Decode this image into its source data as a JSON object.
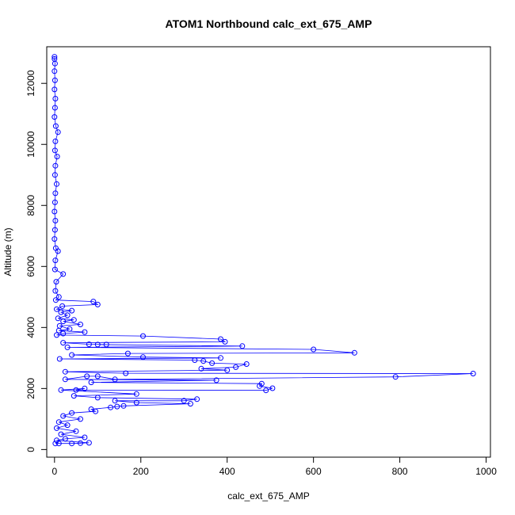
{
  "chart_data": {
    "type": "scatter",
    "title": "ATOM1 Northbound calc_ext_675_AMP",
    "xlabel": "calc_ext_675_AMP",
    "ylabel": "Altitude (m)",
    "xlim": [
      -18,
      1010
    ],
    "ylim": [
      -250,
      13200
    ],
    "xticks": [
      0,
      200,
      400,
      600,
      800,
      1000
    ],
    "yticks": [
      0,
      2000,
      4000,
      6000,
      8000,
      10000,
      12000
    ],
    "grid": false,
    "legend": "none",
    "marker": "open-circle",
    "connected": true,
    "color": "#0000ff",
    "series": [
      {
        "points": [
          [
            0,
            12870
          ],
          [
            0,
            12800
          ],
          [
            1,
            12650
          ],
          [
            0,
            12400
          ],
          [
            1,
            12100
          ],
          [
            0,
            11800
          ],
          [
            2,
            11500
          ],
          [
            1,
            11200
          ],
          [
            0,
            10900
          ],
          [
            3,
            10600
          ],
          [
            8,
            10400
          ],
          [
            2,
            10100
          ],
          [
            1,
            9800
          ],
          [
            6,
            9600
          ],
          [
            2,
            9300
          ],
          [
            1,
            9000
          ],
          [
            5,
            8700
          ],
          [
            2,
            8400
          ],
          [
            1,
            8100
          ],
          [
            0,
            7800
          ],
          [
            2,
            7500
          ],
          [
            1,
            7200
          ],
          [
            0,
            6900
          ],
          [
            3,
            6600
          ],
          [
            8,
            6500
          ],
          [
            2,
            6200
          ],
          [
            1,
            5900
          ],
          [
            20,
            5750
          ],
          [
            4,
            5500
          ],
          [
            2,
            5200
          ],
          [
            10,
            5000
          ],
          [
            3,
            4900
          ],
          [
            90,
            4850
          ],
          [
            100,
            4750
          ],
          [
            18,
            4700
          ],
          [
            5,
            4600
          ],
          [
            40,
            4550
          ],
          [
            15,
            4500
          ],
          [
            30,
            4400
          ],
          [
            8,
            4300
          ],
          [
            45,
            4250
          ],
          [
            20,
            4200
          ],
          [
            60,
            4100
          ],
          [
            12,
            4050
          ],
          [
            35,
            3950
          ],
          [
            10,
            3900
          ],
          [
            70,
            3850
          ],
          [
            20,
            3800
          ],
          [
            5,
            3750
          ],
          [
            205,
            3720
          ],
          [
            385,
            3620
          ],
          [
            395,
            3530
          ],
          [
            20,
            3500
          ],
          [
            80,
            3450
          ],
          [
            120,
            3440
          ],
          [
            100,
            3440
          ],
          [
            435,
            3390
          ],
          [
            30,
            3350
          ],
          [
            600,
            3280
          ],
          [
            695,
            3170
          ],
          [
            170,
            3150
          ],
          [
            40,
            3100
          ],
          [
            205,
            3030
          ],
          [
            385,
            3000
          ],
          [
            12,
            2970
          ],
          [
            325,
            2930
          ],
          [
            345,
            2900
          ],
          [
            365,
            2830
          ],
          [
            445,
            2800
          ],
          [
            420,
            2700
          ],
          [
            340,
            2650
          ],
          [
            400,
            2600
          ],
          [
            25,
            2550
          ],
          [
            165,
            2500
          ],
          [
            970,
            2490
          ],
          [
            790,
            2380
          ],
          [
            140,
            2300
          ],
          [
            100,
            2400
          ],
          [
            75,
            2400
          ],
          [
            25,
            2300
          ],
          [
            375,
            2270
          ],
          [
            85,
            2200
          ],
          [
            480,
            2160
          ],
          [
            475,
            2080
          ],
          [
            505,
            2010
          ],
          [
            490,
            1940
          ],
          [
            50,
            1950
          ],
          [
            70,
            2000
          ],
          [
            15,
            1950
          ],
          [
            190,
            1820
          ],
          [
            45,
            1760
          ],
          [
            100,
            1700
          ],
          [
            330,
            1650
          ],
          [
            300,
            1600
          ],
          [
            140,
            1600
          ],
          [
            190,
            1540
          ],
          [
            315,
            1500
          ],
          [
            160,
            1430
          ],
          [
            145,
            1410
          ],
          [
            130,
            1380
          ],
          [
            85,
            1320
          ],
          [
            95,
            1250
          ],
          [
            40,
            1200
          ],
          [
            20,
            1100
          ],
          [
            60,
            1000
          ],
          [
            10,
            900
          ],
          [
            30,
            800
          ],
          [
            5,
            700
          ],
          [
            50,
            600
          ],
          [
            15,
            500
          ],
          [
            70,
            400
          ],
          [
            25,
            350
          ],
          [
            5,
            300
          ],
          [
            80,
            220
          ],
          [
            60,
            210
          ],
          [
            40,
            200
          ],
          [
            10,
            200
          ],
          [
            2,
            200
          ]
        ]
      }
    ]
  }
}
